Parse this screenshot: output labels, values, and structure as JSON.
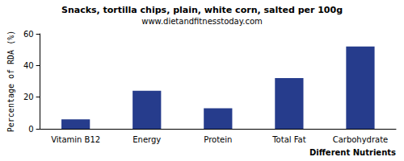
{
  "chart_data": {
    "type": "bar",
    "title": "Snacks, tortilla chips, plain, white corn, salted per 100g",
    "subtitle": "www.dietandfitnesstoday.com",
    "x_label": "Different Nutrients",
    "y_label": "Percentage of RDA (%)",
    "categories": [
      "Vitamin B12",
      "Energy",
      "Protein",
      "Total Fat",
      "Carbohydrate"
    ],
    "values": [
      6,
      24,
      13,
      32,
      52
    ],
    "color": "#263c8c",
    "ylim": [
      0,
      60
    ],
    "yticks": [
      0,
      20,
      40,
      60
    ],
    "grid": false
  }
}
